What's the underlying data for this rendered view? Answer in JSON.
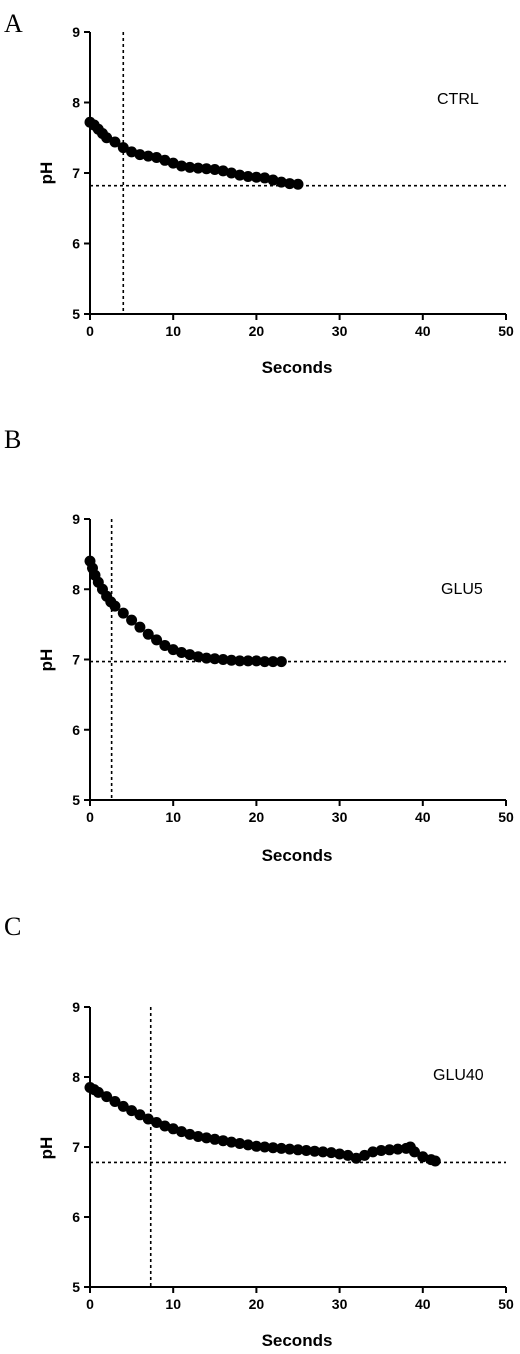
{
  "chart_data": [
    {
      "type": "scatter",
      "panel_label": "A",
      "title": "",
      "annotation": "CTRL",
      "xlabel": "Seconds",
      "ylabel": "pH",
      "xlim": [
        0,
        50
      ],
      "ylim": [
        5,
        9
      ],
      "xticks": [
        0,
        10,
        20,
        30,
        40,
        50
      ],
      "yticks": [
        5,
        6,
        7,
        8,
        9
      ],
      "reference_lines": {
        "vertical_x": 4,
        "horizontal_y": 6.82
      },
      "colors": {
        "points": "#000000",
        "axes": "#000000"
      },
      "series": [
        {
          "x": [
            0,
            0.5,
            1,
            1.5,
            2,
            3,
            4,
            5,
            6,
            7,
            8,
            9,
            10,
            11,
            12,
            13,
            14,
            15,
            16,
            17,
            18,
            19,
            20,
            21,
            22,
            23,
            24,
            25
          ],
          "y": [
            7.72,
            7.68,
            7.62,
            7.56,
            7.5,
            7.44,
            7.36,
            7.3,
            7.26,
            7.24,
            7.22,
            7.18,
            7.14,
            7.1,
            7.08,
            7.07,
            7.06,
            7.05,
            7.03,
            7.0,
            6.97,
            6.95,
            6.94,
            6.93,
            6.9,
            6.87,
            6.85,
            6.84
          ]
        }
      ]
    },
    {
      "type": "scatter",
      "panel_label": "B",
      "title": "",
      "annotation": "GLU5",
      "xlabel": "Seconds",
      "ylabel": "pH",
      "xlim": [
        0,
        50
      ],
      "ylim": [
        5,
        9
      ],
      "xticks": [
        0,
        10,
        20,
        30,
        40,
        50
      ],
      "yticks": [
        5,
        6,
        7,
        8,
        9
      ],
      "reference_lines": {
        "vertical_x": 2.6,
        "horizontal_y": 6.97
      },
      "colors": {
        "points": "#000000",
        "axes": "#000000"
      },
      "series": [
        {
          "x": [
            0,
            0.3,
            0.6,
            1,
            1.5,
            2,
            2.5,
            3,
            4,
            5,
            6,
            7,
            8,
            9,
            10,
            11,
            12,
            13,
            14,
            15,
            16,
            17,
            18,
            19,
            20,
            21,
            22,
            23
          ],
          "y": [
            8.4,
            8.3,
            8.2,
            8.1,
            8.0,
            7.9,
            7.82,
            7.76,
            7.66,
            7.56,
            7.46,
            7.36,
            7.28,
            7.2,
            7.14,
            7.1,
            7.07,
            7.04,
            7.02,
            7.01,
            7.0,
            6.99,
            6.98,
            6.98,
            6.98,
            6.97,
            6.97,
            6.97
          ]
        }
      ]
    },
    {
      "type": "scatter",
      "panel_label": "C",
      "title": "",
      "annotation": "GLU40",
      "xlabel": "Seconds",
      "ylabel": "pH",
      "xlim": [
        0,
        50
      ],
      "ylim": [
        5,
        9
      ],
      "xticks": [
        0,
        10,
        20,
        30,
        40,
        50
      ],
      "yticks": [
        5,
        6,
        7,
        8,
        9
      ],
      "reference_lines": {
        "vertical_x": 7.3,
        "horizontal_y": 6.78
      },
      "colors": {
        "points": "#000000",
        "axes": "#000000"
      },
      "series": [
        {
          "x": [
            0,
            0.5,
            1,
            2,
            3,
            4,
            5,
            6,
            7,
            8,
            9,
            10,
            11,
            12,
            13,
            14,
            15,
            16,
            17,
            18,
            19,
            20,
            21,
            22,
            23,
            24,
            25,
            26,
            27,
            28,
            29,
            30,
            31,
            32,
            33,
            34,
            35,
            36,
            37,
            38,
            38.5,
            39,
            40,
            41,
            41.5
          ],
          "y": [
            7.85,
            7.82,
            7.78,
            7.72,
            7.65,
            7.58,
            7.52,
            7.46,
            7.4,
            7.35,
            7.3,
            7.26,
            7.22,
            7.18,
            7.15,
            7.13,
            7.11,
            7.09,
            7.07,
            7.05,
            7.03,
            7.01,
            7.0,
            6.99,
            6.98,
            6.97,
            6.96,
            6.95,
            6.94,
            6.93,
            6.92,
            6.9,
            6.88,
            6.84,
            6.88,
            6.93,
            6.95,
            6.96,
            6.97,
            6.98,
            7.0,
            6.93,
            6.86,
            6.82,
            6.8
          ]
        }
      ]
    }
  ]
}
